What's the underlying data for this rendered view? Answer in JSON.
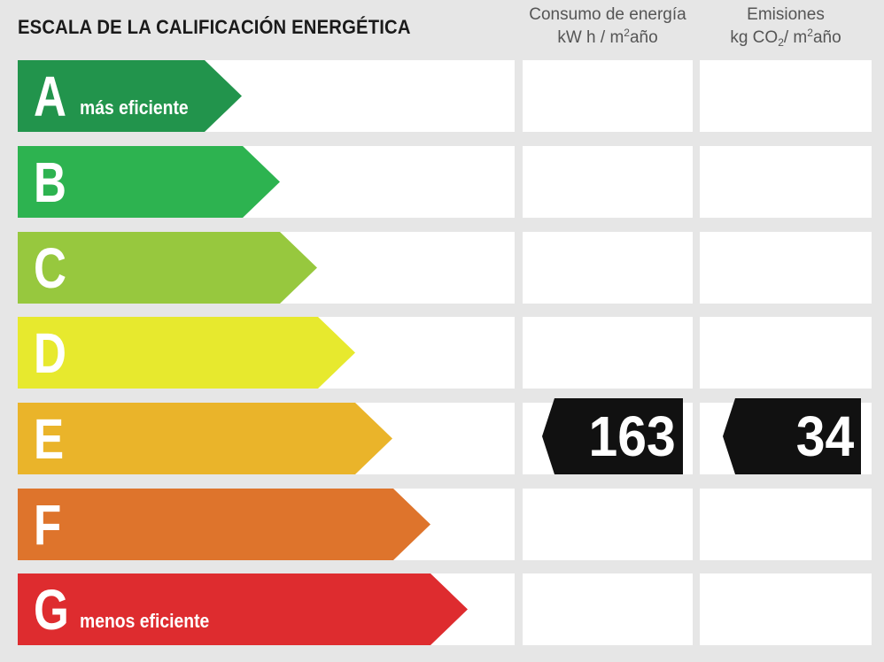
{
  "title": "ESCALA DE LA CALIFICACIÓN ENERGÉTICA",
  "columns": {
    "energy": {
      "line1": "Consumo de energía",
      "line2_a": "kW h / m",
      "line2_sup": "2",
      "line2_b": "año"
    },
    "emissions": {
      "line1": "Emisiones",
      "line2_a": "kg CO",
      "line2_sub": "2",
      "line2_b": "/ m",
      "line2_sup": "2",
      "line2_c": "año"
    }
  },
  "ratings": [
    {
      "letter": "A",
      "label": "más eficiente",
      "color": "#22944c"
    },
    {
      "letter": "B",
      "label": "",
      "color": "#2db350"
    },
    {
      "letter": "C",
      "label": "",
      "color": "#97c83e"
    },
    {
      "letter": "D",
      "label": "",
      "color": "#e7e92e"
    },
    {
      "letter": "E",
      "label": "",
      "color": "#eab42a"
    },
    {
      "letter": "F",
      "label": "",
      "color": "#de742c"
    },
    {
      "letter": "G",
      "label": "menos eficiente",
      "color": "#de2c2f"
    }
  ],
  "result": {
    "rating": "E",
    "energy_value": "163",
    "emissions_value": "34"
  }
}
